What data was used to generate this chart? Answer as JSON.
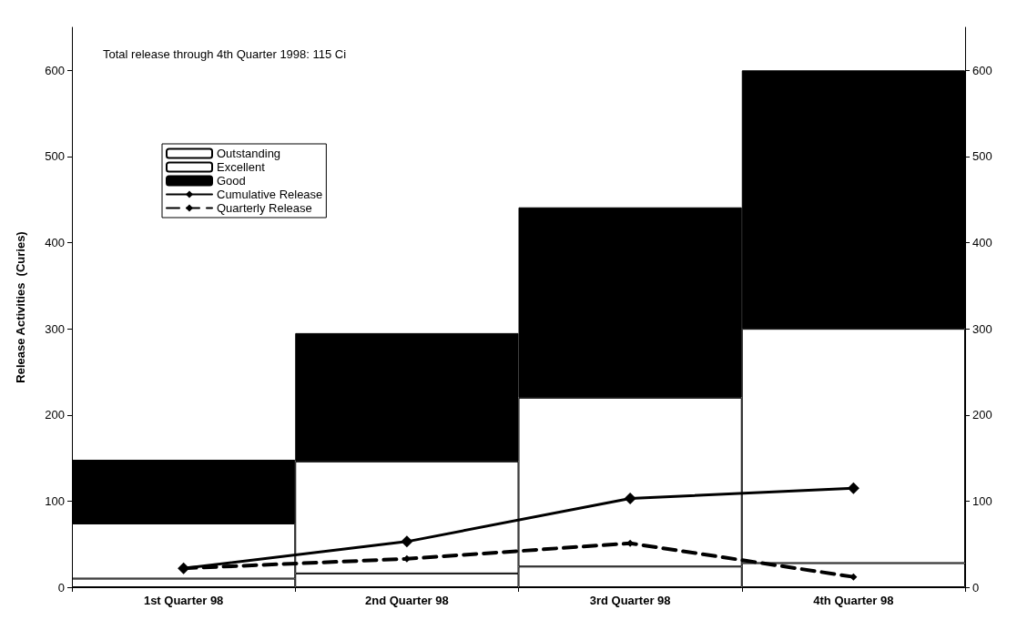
{
  "chart_data": {
    "type": "bar",
    "stacked": true,
    "ylabel": "Release Activities  (Curies)",
    "annotations": [
      "Total release through 4th Quarter 1998: 115 Ci"
    ],
    "categories": [
      "1st Quarter 98",
      "2nd Quarter 98",
      "3rd Quarter 98",
      "4th Quarter 98"
    ],
    "series": [
      {
        "name": "Outstanding",
        "color": "#ffffff",
        "values": [
          10,
          16,
          24,
          28
        ]
      },
      {
        "name": "Excellent",
        "color": "#ffffff",
        "values": [
          64,
          130,
          196,
          272
        ]
      },
      {
        "name": "Good",
        "color": "#000000",
        "values": [
          74,
          149,
          221,
          300
        ]
      },
      {
        "name": "Cumulative Release",
        "type": "line",
        "color": "#000000",
        "line_style": "solid",
        "values": [
          22,
          53,
          103,
          115
        ]
      },
      {
        "name": "Quarterly Release",
        "type": "line",
        "color": "#000000",
        "line_style": "dashed",
        "values": [
          22,
          33,
          51,
          12
        ]
      }
    ],
    "marker": "diamond",
    "ylim": [
      0,
      650
    ],
    "yticks": [
      0,
      100,
      200,
      300,
      400,
      500,
      600
    ],
    "y2lim": [
      0,
      650
    ],
    "y2ticks": [
      0,
      100,
      200,
      300,
      400,
      500,
      600
    ],
    "grid": false,
    "legend": "top left"
  }
}
